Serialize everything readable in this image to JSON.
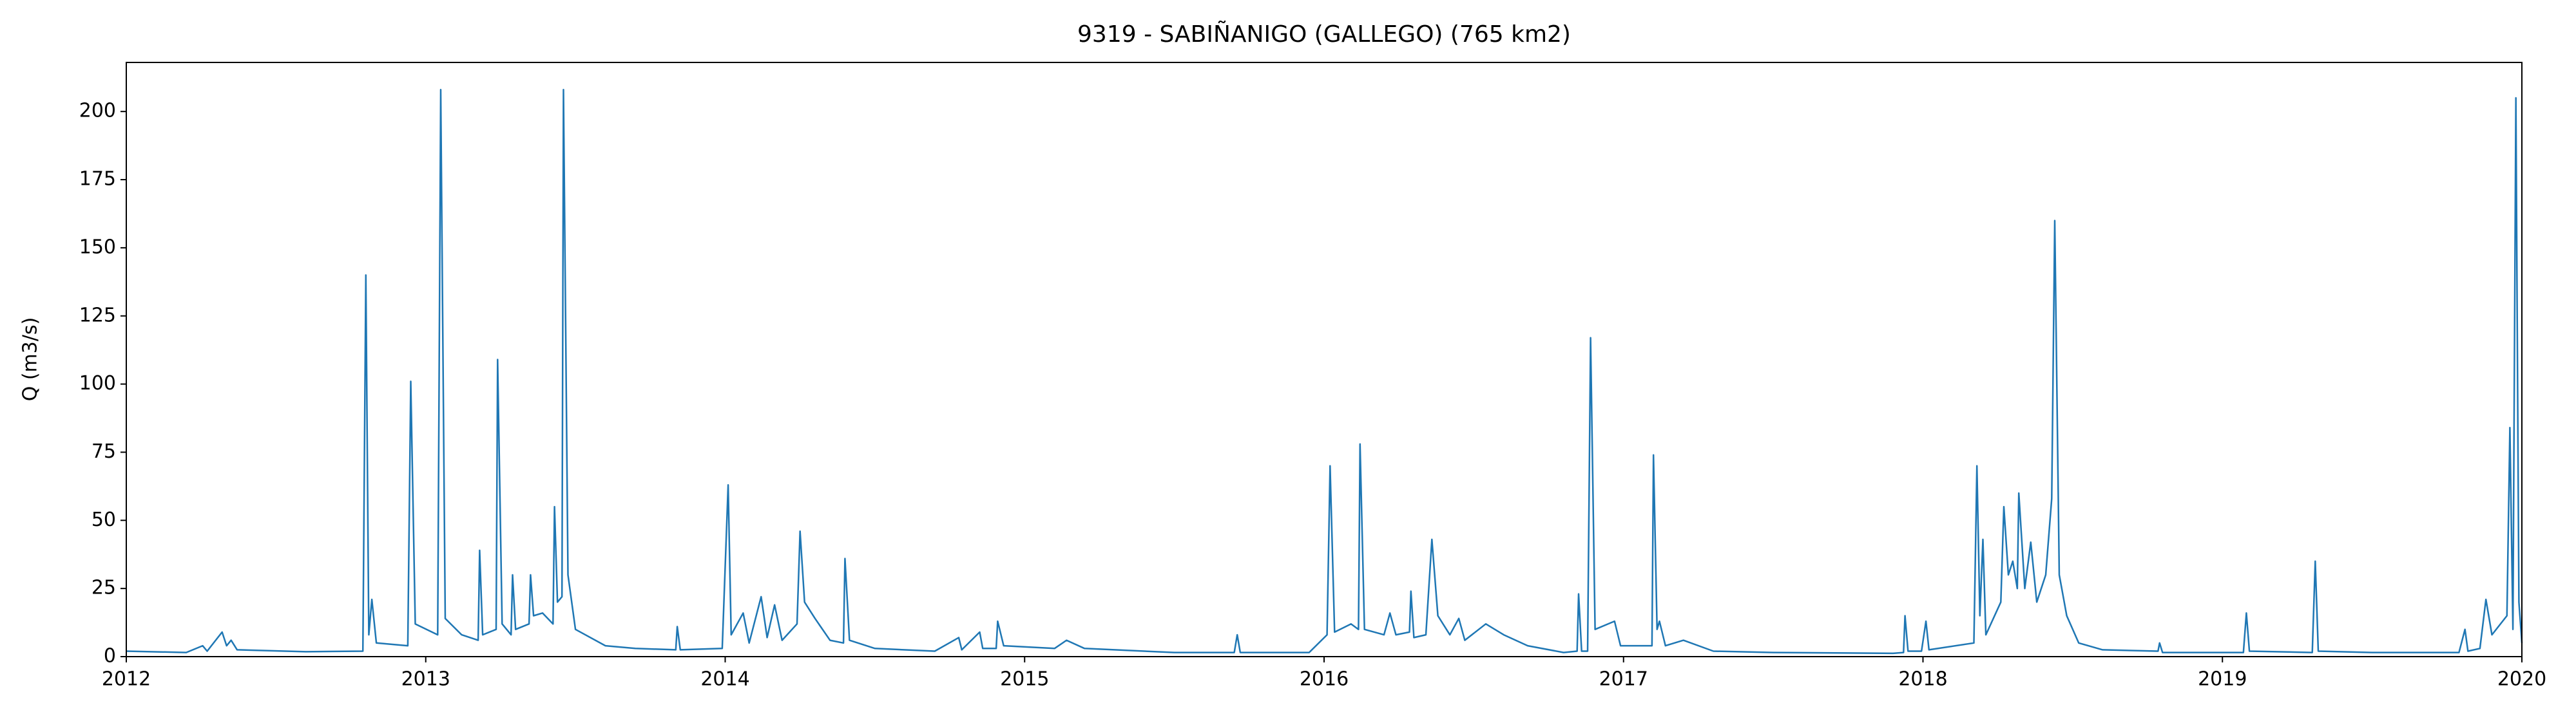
{
  "chart_data": {
    "type": "line",
    "title": "9319 - SABIÑANIGO (GALLEGO) (765 km2)",
    "y_label": "Q (m3/s)",
    "x": [
      2012.0,
      2012.2,
      2012.255,
      2012.27,
      2012.32,
      2012.335,
      2012.35,
      2012.37,
      2012.6,
      2012.79,
      2012.8,
      2012.81,
      2012.82,
      2012.835,
      2012.94,
      2012.95,
      2012.965,
      2013.04,
      2013.05,
      2013.065,
      2013.12,
      2013.175,
      2013.18,
      2013.19,
      2013.235,
      2013.24,
      2013.255,
      2013.285,
      2013.29,
      2013.3,
      2013.345,
      2013.35,
      2013.36,
      2013.39,
      2013.425,
      2013.43,
      2013.44,
      2013.455,
      2013.46,
      2013.475,
      2013.5,
      2013.6,
      2013.7,
      2013.835,
      2013.84,
      2013.85,
      2013.99,
      2014.01,
      2014.02,
      2014.06,
      2014.08,
      2014.12,
      2014.14,
      2014.165,
      2014.19,
      2014.24,
      2014.25,
      2014.265,
      2014.3,
      2014.35,
      2014.395,
      2014.4,
      2014.415,
      2014.5,
      2014.7,
      2014.78,
      2014.79,
      2014.85,
      2014.86,
      2014.905,
      2014.91,
      2014.93,
      2015.1,
      2015.14,
      2015.2,
      2015.5,
      2015.7,
      2015.71,
      2015.72,
      2015.95,
      2016.01,
      2016.02,
      2016.035,
      2016.09,
      2016.115,
      2016.12,
      2016.135,
      2016.2,
      2016.22,
      2016.24,
      2016.285,
      2016.29,
      2016.3,
      2016.34,
      2016.36,
      2016.38,
      2016.42,
      2016.45,
      2016.47,
      2016.54,
      2016.6,
      2016.68,
      2016.8,
      2016.845,
      2016.85,
      2016.86,
      2016.88,
      2016.89,
      2016.905,
      2016.97,
      2016.99,
      2017.095,
      2017.1,
      2017.112,
      2017.12,
      2017.14,
      2017.2,
      2017.3,
      2017.5,
      2017.9,
      2017.935,
      2017.94,
      2017.95,
      2017.995,
      2018.01,
      2018.02,
      2018.17,
      2018.18,
      2018.19,
      2018.2,
      2018.21,
      2018.26,
      2018.27,
      2018.285,
      2018.3,
      2018.315,
      2018.32,
      2018.34,
      2018.36,
      2018.38,
      2018.41,
      2018.43,
      2018.44,
      2018.455,
      2018.48,
      2018.52,
      2018.6,
      2018.785,
      2018.79,
      2018.8,
      2019.07,
      2019.08,
      2019.09,
      2019.3,
      2019.31,
      2019.32,
      2019.5,
      2019.79,
      2019.81,
      2019.82,
      2019.86,
      2019.88,
      2019.9,
      2019.95,
      2019.96,
      2019.97,
      2019.98,
      2019.99,
      2020.0
    ],
    "series": [
      {
        "name": "Q",
        "color": "#1f77b4",
        "values": [
          2,
          1.5,
          4,
          2,
          9,
          4,
          6,
          2.5,
          1.8,
          2,
          140,
          8,
          21,
          5,
          4,
          101,
          12,
          8,
          208,
          14,
          8,
          6,
          39,
          8,
          10,
          109,
          12,
          8,
          30,
          10,
          12,
          30,
          15,
          16,
          12,
          55,
          20,
          22,
          208,
          30,
          10,
          4,
          3,
          2.5,
          11,
          2.5,
          3,
          63,
          8,
          16,
          5,
          22,
          7,
          19,
          6,
          12,
          46,
          20,
          14,
          6,
          5,
          36,
          6,
          3,
          2,
          7,
          2.5,
          9,
          3,
          3,
          13,
          4,
          3,
          6,
          3,
          1.5,
          1.5,
          8,
          1.5,
          1.5,
          8,
          70,
          9,
          12,
          10,
          78,
          10,
          8,
          16,
          8,
          9,
          24,
          7,
          8,
          43,
          15,
          8,
          14,
          6,
          12,
          8,
          4,
          1.5,
          2,
          23,
          2,
          2,
          117,
          10,
          13,
          4,
          4,
          74,
          10,
          13,
          4,
          6,
          2,
          1.5,
          1.2,
          1.5,
          15,
          2,
          2,
          13,
          2.5,
          5,
          70,
          15,
          43,
          8,
          20,
          55,
          30,
          35,
          25,
          60,
          25,
          42,
          20,
          30,
          58,
          160,
          30,
          15,
          5,
          2.5,
          2,
          5,
          1.5,
          1.5,
          16,
          2,
          1.5,
          35,
          2,
          1.5,
          1.5,
          10,
          2,
          3,
          21,
          8,
          15,
          84,
          10,
          205,
          20,
          5
        ]
      }
    ],
    "xlim": [
      2012,
      2020
    ],
    "xticks": [
      2012,
      2013,
      2014,
      2015,
      2016,
      2017,
      2018,
      2019,
      2020
    ],
    "ylim": [
      0,
      218
    ],
    "yticks": [
      0,
      25,
      50,
      75,
      100,
      125,
      150,
      175,
      200
    ]
  }
}
